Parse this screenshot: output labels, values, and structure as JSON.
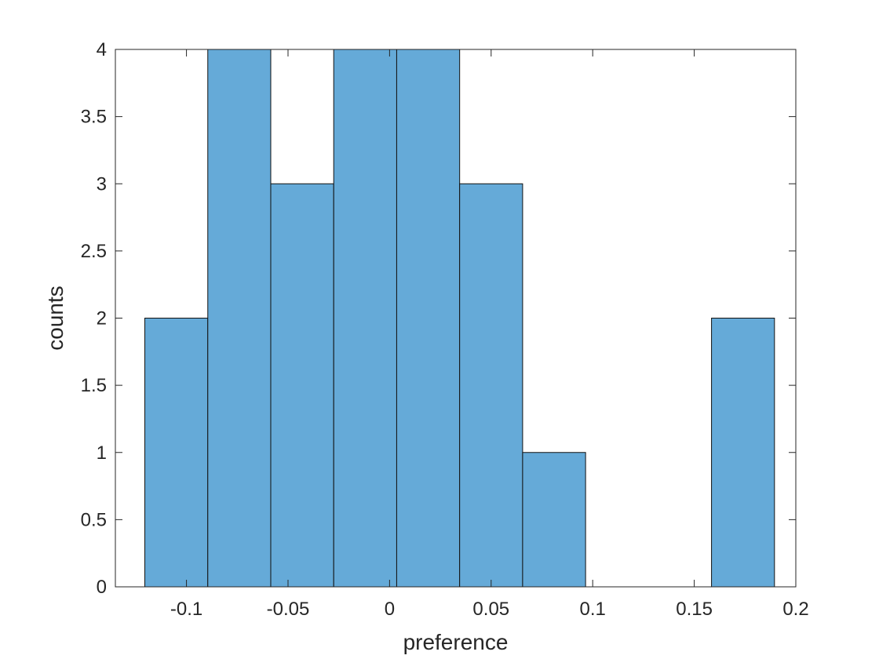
{
  "chart_data": {
    "type": "bar",
    "bin_edges": [
      -0.1205,
      -0.0895,
      -0.0585,
      -0.0275,
      0.0035,
      0.0345,
      0.0655,
      0.0965,
      0.1275,
      0.1585,
      0.1895
    ],
    "counts": [
      2,
      4,
      3,
      4,
      4,
      3,
      1,
      0,
      0,
      2
    ],
    "xlabel": "preference",
    "ylabel": "counts",
    "xlim": [
      -0.135,
      0.2
    ],
    "ylim": [
      0,
      4
    ],
    "xticks": [
      -0.1,
      -0.05,
      0,
      0.05,
      0.1,
      0.15,
      0.2
    ],
    "xtick_labels": [
      "-0.1",
      "-0.05",
      "0",
      "0.05",
      "0.1",
      "0.15",
      "0.2"
    ],
    "yticks": [
      0,
      0.5,
      1,
      1.5,
      2,
      2.5,
      3,
      3.5,
      4
    ],
    "ytick_labels": [
      "0",
      "0.5",
      "1",
      "1.5",
      "2",
      "2.5",
      "3",
      "3.5",
      "4"
    ],
    "grid": false,
    "bar_color": "#65aad8",
    "edge_color": "#111111"
  }
}
